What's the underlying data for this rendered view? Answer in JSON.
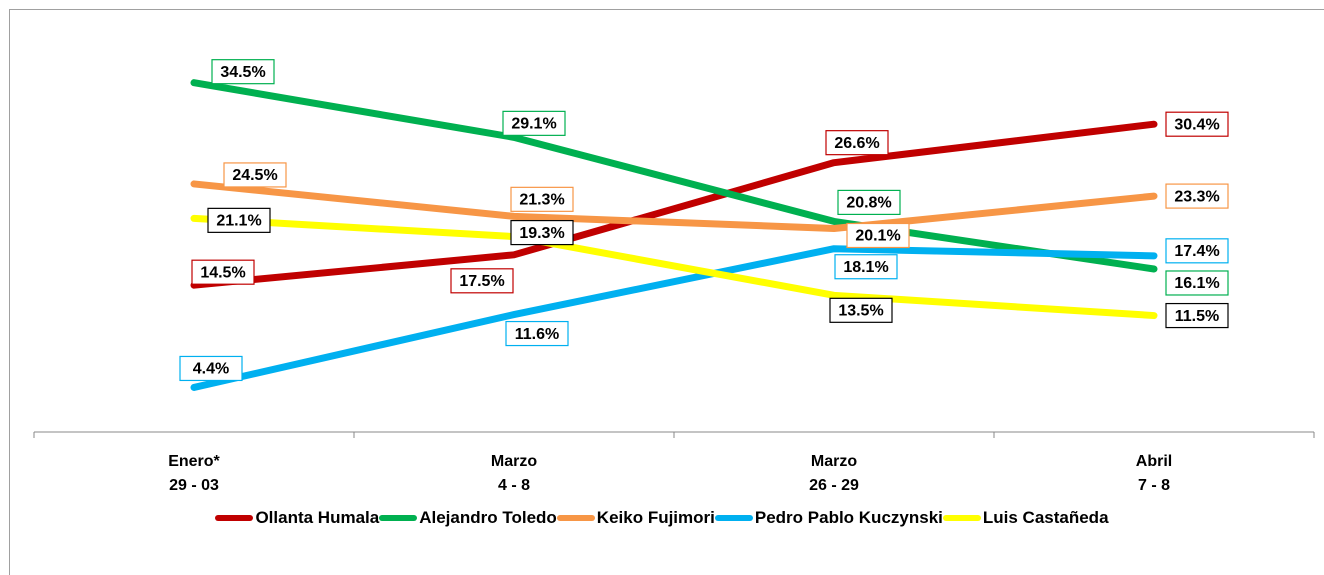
{
  "chart_data": {
    "type": "line",
    "categories": [
      [
        "Enero*",
        "29 - 03"
      ],
      [
        "Marzo",
        "4 - 8"
      ],
      [
        "Marzo",
        "26 - 29"
      ],
      [
        "Abril",
        "7 - 8"
      ]
    ],
    "ylim": [
      0,
      40
    ],
    "series": [
      {
        "name": "Ollanta Humala",
        "color": "#c00000",
        "values": [
          14.5,
          17.5,
          26.6,
          30.4
        ],
        "value_labels": [
          "14.5%",
          "17.5%",
          "26.6%",
          "30.4%"
        ]
      },
      {
        "name": "Alejandro Toledo",
        "color": "#00b050",
        "values": [
          34.5,
          29.1,
          20.8,
          16.1
        ],
        "value_labels": [
          "34.5%",
          "29.1%",
          "20.8%",
          "16.1%"
        ]
      },
      {
        "name": "Keiko Fujimori",
        "color": "#f79646",
        "values": [
          24.5,
          21.3,
          20.1,
          23.3
        ],
        "value_labels": [
          "24.5%",
          "21.3%",
          "20.1%",
          "23.3%"
        ]
      },
      {
        "name": "Pedro Pablo Kuczynski",
        "color": "#00b0f0",
        "values": [
          4.4,
          11.6,
          18.1,
          17.4
        ],
        "value_labels": [
          "4.4%",
          "11.6%",
          "18.1%",
          "17.4%"
        ]
      },
      {
        "name": "Luis Castañeda",
        "color": "#ffff00",
        "values": [
          21.1,
          19.3,
          13.5,
          11.5
        ],
        "value_labels": [
          "21.1%",
          "19.3%",
          "13.5%",
          "11.5%"
        ]
      }
    ]
  }
}
